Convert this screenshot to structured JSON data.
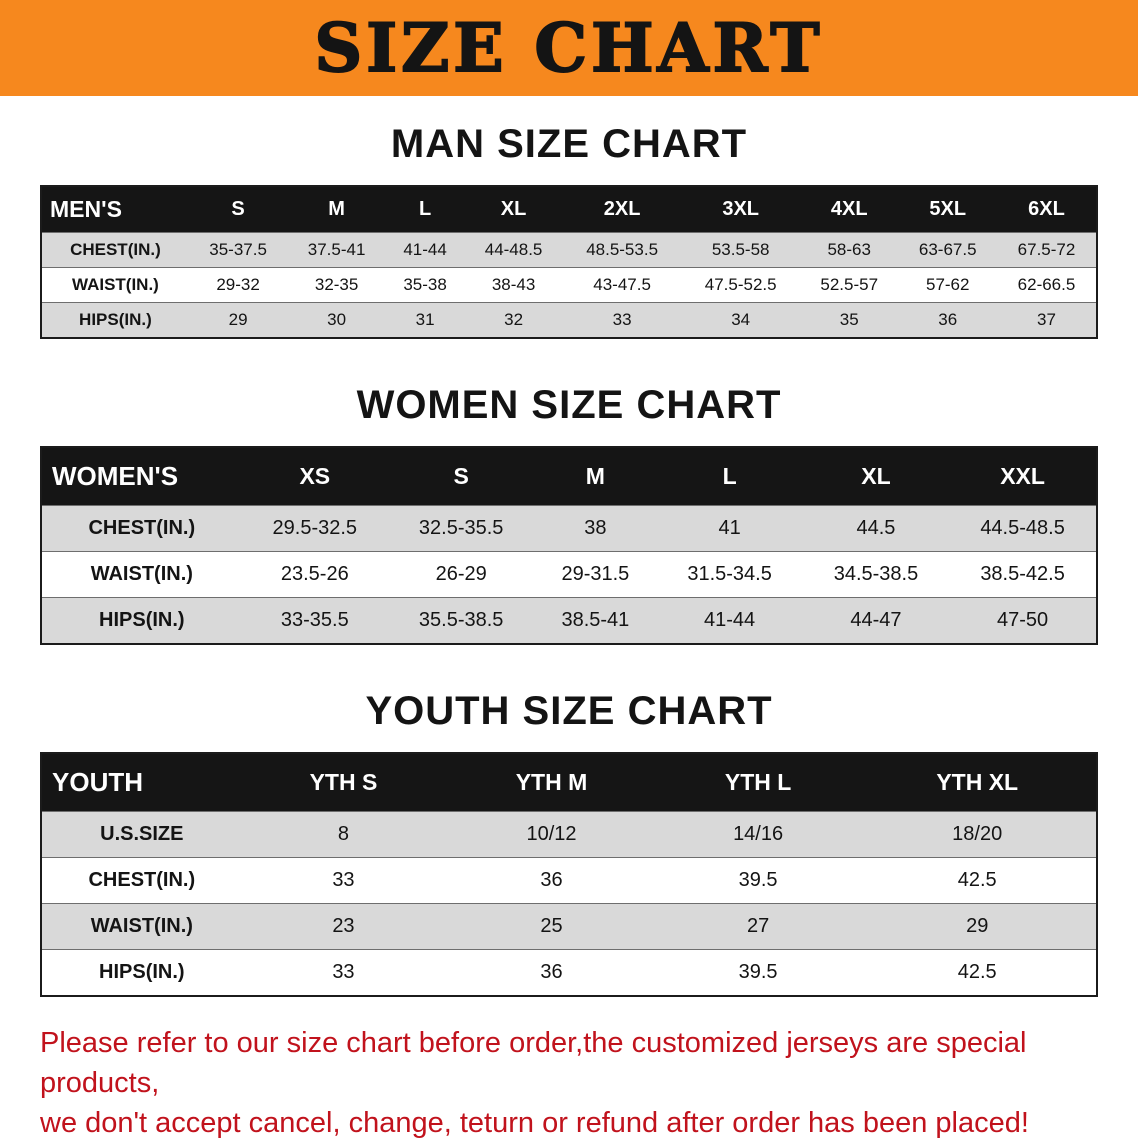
{
  "banner": {
    "title": "SIZE CHART"
  },
  "colors": {
    "banner_bg": "#F6881E",
    "header_bg": "#151515",
    "row_alt_bg": "#D9D9D9",
    "notice_text": "#C1121C"
  },
  "sections": [
    {
      "id": "men",
      "heading": "MAN SIZE CHART",
      "header": [
        "MEN'S",
        "S",
        "M",
        "L",
        "XL",
        "2XL",
        "3XL",
        "4XL",
        "5XL",
        "6XL"
      ],
      "rows": [
        {
          "label": "CHEST(IN.)",
          "values": [
            "35-37.5",
            "37.5-41",
            "41-44",
            "44-48.5",
            "48.5-53.5",
            "53.5-58",
            "58-63",
            "63-67.5",
            "67.5-72"
          ]
        },
        {
          "label": "WAIST(IN.)",
          "values": [
            "29-32",
            "32-35",
            "35-38",
            "38-43",
            "43-47.5",
            "47.5-52.5",
            "52.5-57",
            "57-62",
            "62-66.5"
          ]
        },
        {
          "label": "HIPS(IN.)",
          "values": [
            "29",
            "30",
            "31",
            "32",
            "33",
            "34",
            "35",
            "36",
            "37"
          ]
        }
      ]
    },
    {
      "id": "women",
      "heading": "WOMEN SIZE CHART",
      "header": [
        "WOMEN'S",
        "XS",
        "S",
        "M",
        "L",
        "XL",
        "XXL"
      ],
      "rows": [
        {
          "label": "CHEST(IN.)",
          "values": [
            "29.5-32.5",
            "32.5-35.5",
            "38",
            "41",
            "44.5",
            "44.5-48.5"
          ]
        },
        {
          "label": "WAIST(IN.)",
          "values": [
            "23.5-26",
            "26-29",
            "29-31.5",
            "31.5-34.5",
            "34.5-38.5",
            "38.5-42.5"
          ]
        },
        {
          "label": "HIPS(IN.)",
          "values": [
            "33-35.5",
            "35.5-38.5",
            "38.5-41",
            "41-44",
            "44-47",
            "47-50"
          ]
        }
      ]
    },
    {
      "id": "youth",
      "heading": "YOUTH SIZE CHART",
      "header": [
        "YOUTH",
        "YTH S",
        "YTH M",
        "YTH L",
        "YTH XL"
      ],
      "rows": [
        {
          "label": "U.S.SIZE",
          "values": [
            "8",
            "10/12",
            "14/16",
            "18/20"
          ]
        },
        {
          "label": "CHEST(IN.)",
          "values": [
            "33",
            "36",
            "39.5",
            "42.5"
          ]
        },
        {
          "label": "WAIST(IN.)",
          "values": [
            "23",
            "25",
            "27",
            "29"
          ]
        },
        {
          "label": "HIPS(IN.)",
          "values": [
            "33",
            "36",
            "39.5",
            "42.5"
          ]
        }
      ]
    }
  ],
  "footer": {
    "line1": "Please refer to our size chart before order,the customized jerseys are special products,",
    "line2": "we don't accept cancel, change, teturn or refund after order has been placed!"
  }
}
